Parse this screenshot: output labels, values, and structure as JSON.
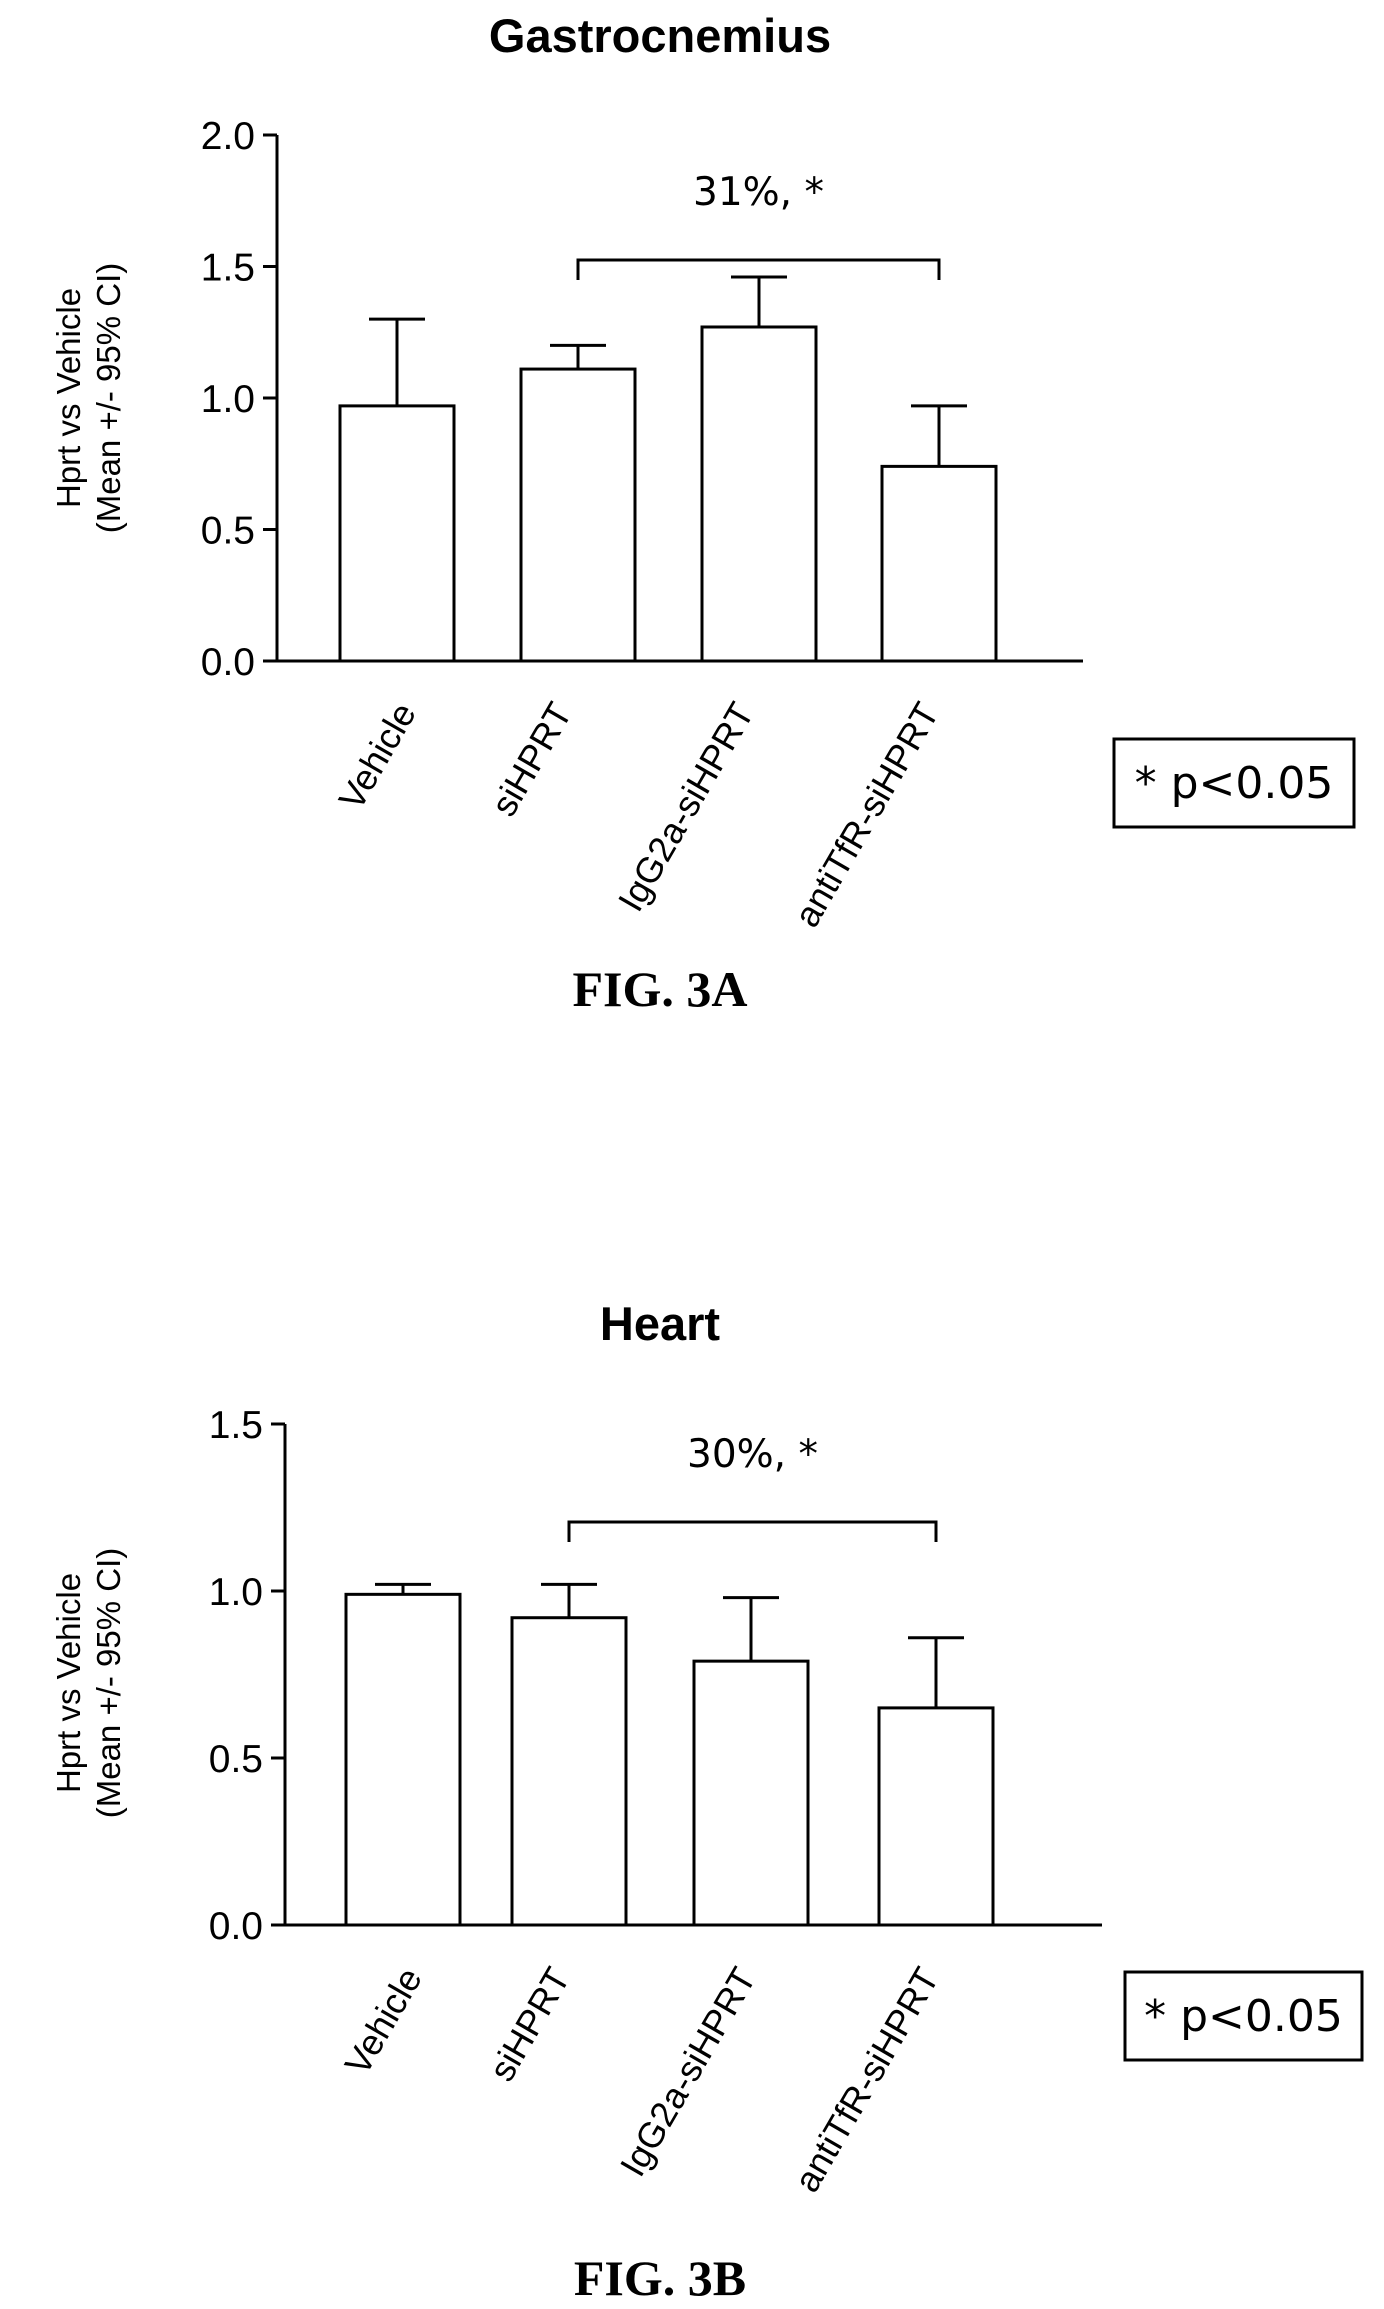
{
  "chart_data": [
    {
      "type": "bar",
      "title": "Gastrocnemius",
      "ylabel_line1": "Hprt vs Vehicle",
      "ylabel_line2": "(Mean +/- 95% CI)",
      "ylim": [
        0,
        2.0
      ],
      "yticks": [
        "0.0",
        "0.5",
        "1.0",
        "1.5",
        "2.0"
      ],
      "categories": [
        "Vehicle",
        "siHPRT",
        "IgG2a-siHPRT",
        "antiTfR-siHPRT"
      ],
      "values": [
        0.97,
        1.11,
        1.27,
        0.74
      ],
      "error_upper": [
        1.3,
        1.2,
        1.46,
        0.97
      ],
      "annotation": {
        "text": "31%, *",
        "from": "siHPRT",
        "to": "antiTfR-siHPRT"
      },
      "legend": "* p<0.05",
      "caption": "FIG. 3A"
    },
    {
      "type": "bar",
      "title": "Heart",
      "ylabel_line1": "Hprt vs Vehicle",
      "ylabel_line2": "(Mean +/- 95% CI)",
      "ylim": [
        0,
        1.5
      ],
      "yticks": [
        "0.0",
        "0.5",
        "1.0",
        "1.5"
      ],
      "categories": [
        "Vehicle",
        "siHPRT",
        "IgG2a-siHPRT",
        "antiTfR-siHPRT"
      ],
      "values": [
        0.99,
        0.92,
        0.79,
        0.65
      ],
      "error_upper": [
        1.02,
        1.02,
        0.98,
        0.86
      ],
      "annotation": {
        "text": "30%, *",
        "from": "siHPRT",
        "to": "antiTfR-siHPRT"
      },
      "legend": "* p<0.05",
      "caption": "FIG. 3B"
    }
  ]
}
